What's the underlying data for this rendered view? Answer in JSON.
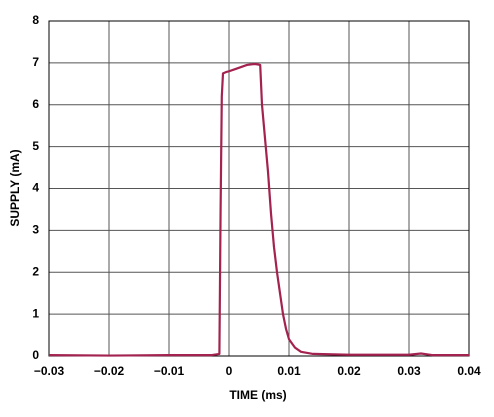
{
  "chart_data": {
    "type": "line",
    "xlabel": "TIME (ms)",
    "ylabel": "SUPPLY (mA)",
    "x": [
      -0.03,
      -0.02,
      -0.01,
      -0.003,
      -0.0016,
      -0.0014,
      -0.0012,
      -0.001,
      -0.0005,
      0,
      0.001,
      0.002,
      0.003,
      0.004,
      0.0045,
      0.0052,
      0.0055,
      0.006,
      0.0065,
      0.007,
      0.0075,
      0.008,
      0.0085,
      0.009,
      0.0095,
      0.01,
      0.011,
      0.012,
      0.014,
      0.02,
      0.03,
      0.032,
      0.034,
      0.04
    ],
    "values": [
      0.02,
      0.01,
      0.02,
      0.02,
      0.05,
      3.5,
      6.2,
      6.75,
      6.78,
      6.8,
      6.85,
      6.9,
      6.95,
      6.97,
      6.97,
      6.95,
      6.0,
      5.2,
      4.4,
      3.4,
      2.6,
      2.0,
      1.5,
      1.0,
      0.65,
      0.4,
      0.2,
      0.1,
      0.05,
      0.03,
      0.03,
      0.06,
      0.02,
      0.02
    ],
    "color": "#a3224f",
    "xlim": [
      -0.03,
      0.04
    ],
    "xticks": [
      {
        "value": -0.03,
        "label": "−0.03"
      },
      {
        "value": -0.02,
        "label": "−0.02"
      },
      {
        "value": -0.01,
        "label": "−0.01"
      },
      0,
      0.01,
      0.02,
      0.03,
      0.04
    ],
    "ylim": [
      0,
      8
    ],
    "yticks": [
      0,
      1,
      2,
      3,
      4,
      5,
      6,
      7,
      8
    ],
    "grid": true
  }
}
